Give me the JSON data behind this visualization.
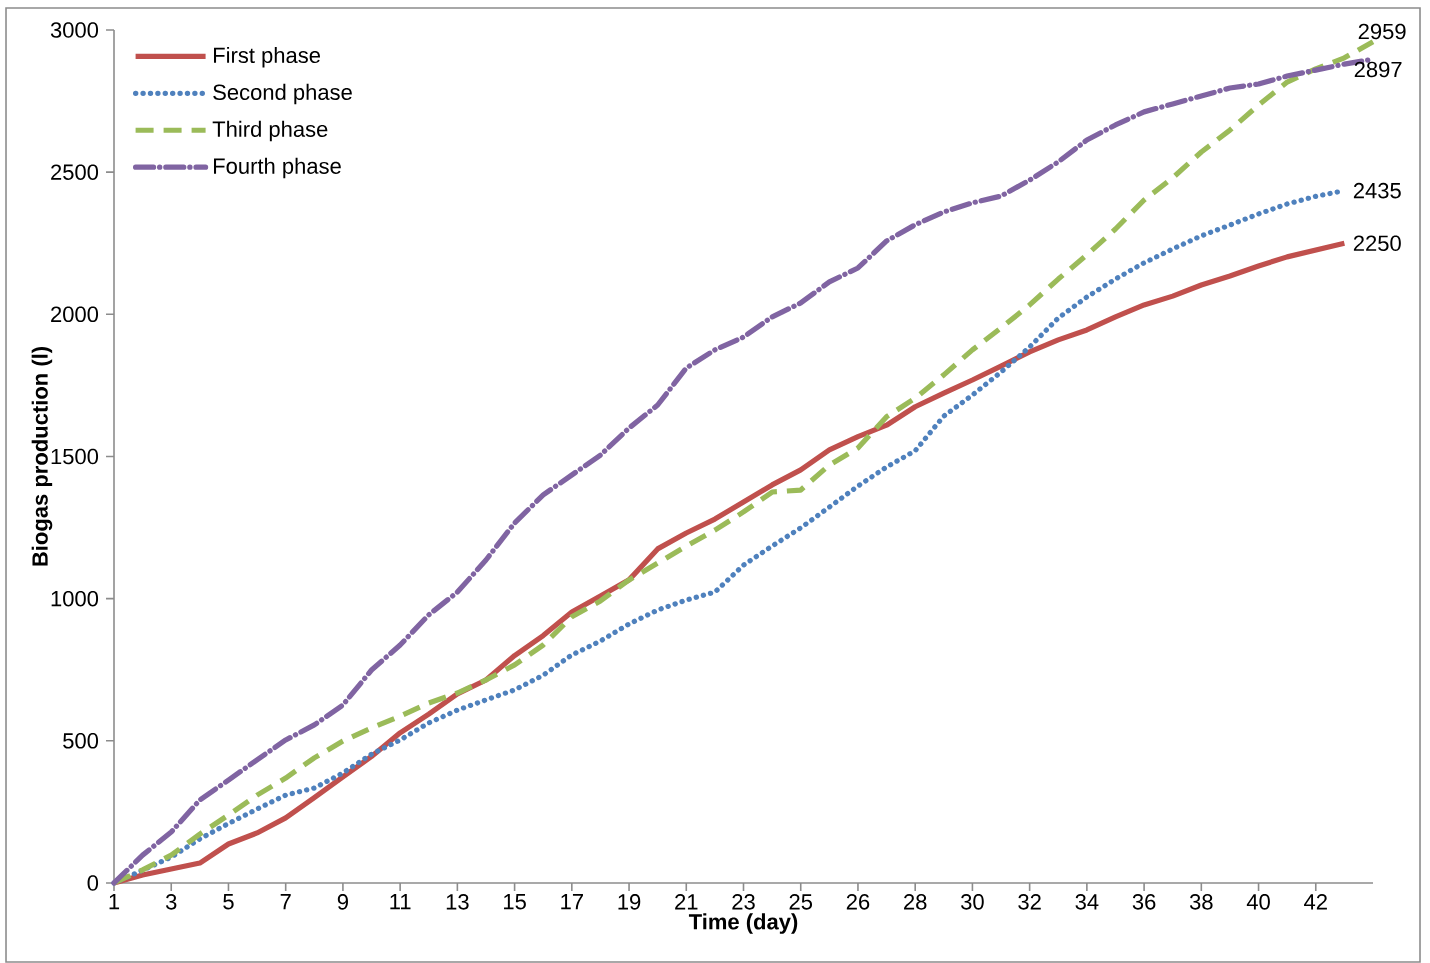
{
  "chart_data": {
    "type": "line",
    "xlabel": "Time (day)",
    "ylabel": "Biogas production (l)",
    "categories": [
      "1",
      null,
      "3",
      null,
      "5",
      null,
      "7",
      null,
      "9",
      null,
      "11",
      null,
      "13",
      null,
      "15",
      null,
      "17",
      null,
      "19",
      null,
      "21",
      null,
      "23",
      null,
      "25",
      null,
      "26",
      null,
      "28",
      null,
      "30",
      null,
      "32",
      null,
      "34",
      null,
      "36",
      null,
      "38",
      null,
      "40",
      null,
      "42",
      null,
      null
    ],
    "ylim": [
      0,
      3000
    ],
    "yticks": [
      0,
      500,
      1000,
      1500,
      2000,
      2500,
      3000
    ],
    "grid": false,
    "legend": "top left",
    "series": [
      {
        "name": "First phase",
        "color": "#c0504d",
        "line_style": "solid",
        "values": [
          0,
          28,
          49,
          70,
          137,
          176,
          229,
          300,
          373,
          445,
          528,
          594,
          665,
          714,
          800,
          870,
          953,
          1009,
          1066,
          1175,
          1231,
          1280,
          1340,
          1400,
          1453,
          1523,
          1570,
          1610,
          1675,
          1723,
          1769,
          1818,
          1868,
          1910,
          1945,
          1991,
          2033,
          2064,
          2103,
          2135,
          2170,
          2202,
          2226,
          2250,
          null
        ],
        "value_labels": [
          null,
          null,
          null,
          null,
          null,
          null,
          null,
          null,
          null,
          null,
          null,
          null,
          null,
          null,
          null,
          null,
          null,
          null,
          null,
          null,
          null,
          null,
          null,
          null,
          null,
          null,
          null,
          null,
          null,
          null,
          null,
          null,
          null,
          null,
          null,
          null,
          null,
          null,
          null,
          null,
          null,
          null,
          null,
          "2250",
          null
        ]
      },
      {
        "name": "Second phase",
        "color": "#4f81bd",
        "line_style": "dotted",
        "values": [
          0,
          45,
          91,
          155,
          209,
          260,
          309,
          334,
          387,
          453,
          503,
          563,
          608,
          644,
          679,
          731,
          802,
          851,
          911,
          960,
          995,
          1023,
          1118,
          1185,
          1249,
          1322,
          1396,
          1463,
          1520,
          1642,
          1716,
          1797,
          1885,
          1987,
          2061,
          2124,
          2181,
          2230,
          2276,
          2314,
          2353,
          2388,
          2415,
          2435,
          null
        ],
        "value_labels": [
          null,
          null,
          null,
          null,
          null,
          null,
          null,
          null,
          null,
          null,
          null,
          null,
          null,
          null,
          null,
          null,
          null,
          null,
          null,
          null,
          null,
          null,
          null,
          null,
          null,
          null,
          null,
          null,
          null,
          null,
          null,
          null,
          null,
          null,
          null,
          null,
          null,
          null,
          null,
          null,
          null,
          null,
          null,
          "2435",
          null
        ]
      },
      {
        "name": "Third phase",
        "color": "#9bbb59",
        "line_style": "dashed",
        "values": [
          0,
          46,
          98,
          172,
          239,
          309,
          369,
          440,
          499,
          545,
          587,
          633,
          668,
          714,
          767,
          837,
          936,
          992,
          1066,
          1125,
          1185,
          1241,
          1305,
          1375,
          1382,
          1470,
          1530,
          1640,
          1705,
          1787,
          1875,
          1952,
          2033,
          2124,
          2209,
          2300,
          2402,
          2480,
          2571,
          2648,
          2736,
          2817,
          2863,
          2902,
          2959
        ],
        "value_labels": [
          null,
          null,
          null,
          null,
          null,
          null,
          null,
          null,
          null,
          null,
          null,
          null,
          null,
          null,
          null,
          null,
          null,
          null,
          null,
          null,
          null,
          null,
          null,
          null,
          null,
          null,
          null,
          null,
          null,
          null,
          null,
          null,
          null,
          null,
          null,
          null,
          null,
          null,
          null,
          null,
          null,
          null,
          null,
          null,
          "2959"
        ]
      },
      {
        "name": "Fourth phase",
        "color": "#8064a2",
        "line_style": "dashdot",
        "values": [
          0,
          98,
          179,
          292,
          362,
          433,
          503,
          556,
          626,
          749,
          837,
          943,
          1023,
          1136,
          1266,
          1365,
          1435,
          1505,
          1600,
          1681,
          1811,
          1875,
          1920,
          1991,
          2040,
          2114,
          2163,
          2258,
          2315,
          2360,
          2392,
          2416,
          2472,
          2536,
          2613,
          2666,
          2712,
          2740,
          2768,
          2796,
          2810,
          2838,
          2859,
          2880,
          2897
        ],
        "value_labels": [
          null,
          null,
          null,
          null,
          null,
          null,
          null,
          null,
          null,
          null,
          null,
          null,
          null,
          null,
          null,
          null,
          null,
          null,
          null,
          null,
          null,
          null,
          null,
          null,
          null,
          null,
          null,
          null,
          null,
          null,
          null,
          null,
          null,
          null,
          null,
          null,
          null,
          null,
          null,
          null,
          null,
          null,
          null,
          null,
          "2897"
        ]
      }
    ]
  }
}
